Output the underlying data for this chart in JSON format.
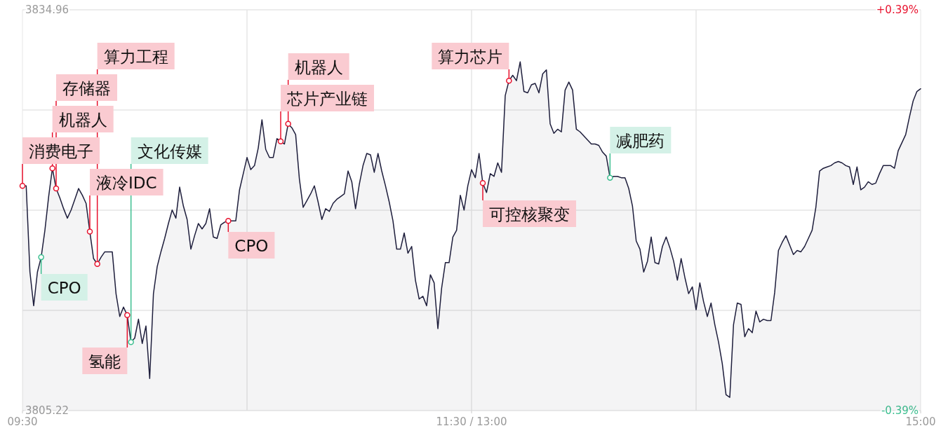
{
  "chart_data": {
    "type": "area",
    "ylim": [
      3805.22,
      3834.96
    ],
    "y2lim": [
      -0.39,
      0.39
    ],
    "yticks": [
      3834.96,
      3805.22
    ],
    "y2ticks": [
      {
        "value": 0.39,
        "label": "+0.39%"
      },
      {
        "value": -0.39,
        "label": "-0.39%"
      }
    ],
    "grid": true,
    "categories": [
      "09:30",
      null,
      null,
      null,
      null,
      null,
      null,
      null,
      null,
      null,
      null,
      null,
      null,
      null,
      null,
      null,
      null,
      null,
      null,
      null,
      null,
      null,
      null,
      null,
      null,
      null,
      null,
      null,
      null,
      null,
      null,
      null,
      null,
      null,
      null,
      null,
      null,
      null,
      null,
      null,
      null,
      null,
      null,
      null,
      null,
      null,
      null,
      null,
      null,
      null,
      null,
      null,
      null,
      null,
      null,
      null,
      null,
      null,
      null,
      null,
      null,
      null,
      null,
      null,
      null,
      null,
      null,
      null,
      null,
      null,
      null,
      null,
      null,
      null,
      null,
      null,
      null,
      null,
      null,
      null,
      null,
      null,
      null,
      null,
      null,
      null,
      null,
      null,
      null,
      null,
      null,
      null,
      null,
      null,
      null,
      null,
      null,
      null,
      null,
      null,
      null,
      null,
      null,
      null,
      null,
      null,
      null,
      null,
      null,
      null,
      null,
      null,
      null,
      null,
      null,
      null,
      null,
      null,
      null,
      null,
      "11:30 / 13:00",
      null,
      null,
      null,
      null,
      null,
      null,
      null,
      null,
      null,
      null,
      null,
      null,
      null,
      null,
      null,
      null,
      null,
      null,
      null,
      null,
      null,
      null,
      null,
      null,
      null,
      null,
      null,
      null,
      null,
      null,
      null,
      null,
      null,
      null,
      null,
      null,
      null,
      null,
      null,
      null,
      null,
      null,
      null,
      null,
      null,
      null,
      null,
      null,
      null,
      null,
      null,
      null,
      null,
      null,
      null,
      null,
      null,
      null,
      null,
      null,
      null,
      null,
      null,
      null,
      null,
      null,
      null,
      null,
      null,
      null,
      null,
      null,
      null,
      null,
      null,
      null,
      null,
      null,
      null,
      null,
      null,
      null,
      null,
      null,
      null,
      null,
      null,
      null,
      null,
      null,
      null,
      null,
      null,
      null,
      null,
      null,
      null,
      null,
      null,
      null,
      null,
      null,
      null,
      null,
      null,
      null,
      null,
      null,
      null,
      null,
      null,
      null,
      null,
      null,
      null,
      null,
      null,
      null,
      null,
      "15:00"
    ],
    "series": [
      {
        "color": "#1e1e3c",
        "values": [
          3821.9,
          3821.9,
          3815.5,
          3813.0,
          3815.5,
          3816.6,
          3818.6,
          3821.1,
          3823.2,
          3821.7,
          3821.0,
          3820.2,
          3819.5,
          3820.1,
          3820.9,
          3821.7,
          3821.2,
          3820.6,
          3818.5,
          3816.5,
          3816.1,
          3816.6,
          3817.0,
          3817.0,
          3817.0,
          3813.9,
          3812.2,
          3812.9,
          3812.3,
          3810.3,
          3810.6,
          3812.0,
          3810.2,
          3811.5,
          3807.6,
          3813.9,
          3815.9,
          3817.0,
          3818.0,
          3819.1,
          3820.1,
          3819.5,
          3821.8,
          3820.4,
          3819.4,
          3817.2,
          3818.2,
          3819.1,
          3818.7,
          3819.1,
          3820.2,
          3818.1,
          3818.0,
          3819.0,
          3819.2,
          3819.3,
          3819.3,
          3819.3,
          3821.6,
          3822.8,
          3824.0,
          3823.1,
          3823.4,
          3824.7,
          3826.8,
          3824.6,
          3824.0,
          3824.0,
          3825.4,
          3825.2,
          3825.0,
          3826.5,
          3826.2,
          3825.7,
          3822.4,
          3820.3,
          3820.8,
          3821.3,
          3821.9,
          3820.7,
          3819.4,
          3820.2,
          3820.0,
          3820.6,
          3820.9,
          3821.1,
          3821.3,
          3823.0,
          3822.2,
          3820.2,
          3822.0,
          3823.4,
          3824.3,
          3824.2,
          3822.9,
          3824.3,
          3823.0,
          3821.9,
          3820.7,
          3819.3,
          3817.2,
          3817.2,
          3818.4,
          3816.9,
          3817.4,
          3814.9,
          3813.5,
          3813.7,
          3813.0,
          3815.3,
          3814.7,
          3811.3,
          3814.3,
          3816.2,
          3816.2,
          3818.1,
          3818.6,
          3821.2,
          3820.1,
          3821.9,
          3823.1,
          3822.5,
          3824.3,
          3822.1,
          3821.4,
          3822.8,
          3822.6,
          3823.6,
          3822.9,
          3828.6,
          3829.7,
          3830.1,
          3829.7,
          3831.1,
          3828.9,
          3828.8,
          3829.4,
          3829.5,
          3828.8,
          3830.2,
          3830.5,
          3826.5,
          3825.8,
          3826.1,
          3825.9,
          3829.0,
          3829.6,
          3829.0,
          3826.1,
          3825.9,
          3825.6,
          3825.3,
          3825.0,
          3825.0,
          3824.9,
          3824.4,
          3824.1,
          3822.5,
          3822.6,
          3822.6,
          3822.5,
          3822.5,
          3821.7,
          3820.4,
          3817.8,
          3817.2,
          3815.5,
          3816.3,
          3818.1,
          3816.2,
          3816.1,
          3817.4,
          3818.1,
          3817.3,
          3816.3,
          3814.9,
          3816.5,
          3815.1,
          3813.9,
          3814.4,
          3812.7,
          3814.7,
          3813.3,
          3812.2,
          3813.2,
          3811.6,
          3810.3,
          3808.7,
          3806.4,
          3806.2,
          3811.6,
          3813.2,
          3813.1,
          3810.7,
          3811.3,
          3811.0,
          3812.6,
          3811.8,
          3812.0,
          3811.9,
          3811.9,
          3814.0,
          3817.1,
          3817.7,
          3818.2,
          3817.5,
          3816.8,
          3817.1,
          3817.0,
          3817.4,
          3818.0,
          3818.6,
          3820.3,
          3823.0,
          3823.2,
          3823.3,
          3823.4,
          3823.6,
          3823.7,
          3823.6,
          3823.4,
          3823.3,
          3822.0,
          3823.3,
          3821.6,
          3821.8,
          3822.2,
          3822.0,
          3822.1,
          3822.8,
          3823.4,
          3823.4,
          3823.4,
          3823.2,
          3824.5,
          3825.1,
          3825.7,
          3827.0,
          3828.2,
          3828.9,
          3829.1
        ]
      },
      {
        "type": "scatter",
        "marker": "circle",
        "color": "#e8112d",
        "values": [
          3821.9,
          null,
          null,
          null,
          null,
          null,
          null,
          null,
          3823.2,
          3821.7,
          null,
          null,
          null,
          null,
          null,
          null,
          null,
          null,
          3818.5,
          null,
          3816.1,
          null,
          null,
          null,
          null,
          null,
          null,
          null,
          3812.3,
          null,
          null,
          null,
          null,
          null,
          null,
          null,
          null,
          null,
          null,
          null,
          null,
          null,
          null,
          null,
          null,
          null,
          null,
          null,
          null,
          null,
          null,
          null,
          null,
          null,
          null,
          3819.3,
          null,
          null,
          null,
          null,
          null,
          null,
          null,
          null,
          null,
          null,
          null,
          null,
          null,
          3825.2,
          null,
          3826.5,
          null,
          null,
          null,
          null,
          null,
          null,
          null,
          null,
          null,
          null,
          null,
          null,
          null,
          null,
          null,
          null,
          null,
          null,
          null,
          null,
          null,
          null,
          null,
          null,
          null,
          null,
          null,
          null,
          null,
          null,
          null,
          null,
          null,
          null,
          null,
          null,
          null,
          null,
          null,
          null,
          null,
          null,
          null,
          null,
          null,
          null,
          null,
          null,
          null,
          null,
          null,
          3822.1,
          null,
          null,
          null,
          null,
          null,
          null,
          3829.7,
          null,
          null,
          null,
          null,
          null,
          null,
          null,
          null,
          null,
          null,
          null,
          null,
          null,
          null,
          null,
          null,
          null,
          null,
          null,
          null,
          null,
          null,
          null,
          null,
          null,
          null,
          null,
          null,
          null,
          null,
          null,
          null,
          null,
          null,
          null,
          null,
          null,
          null,
          null,
          null,
          null,
          null,
          null,
          null,
          null,
          null,
          null,
          null,
          null,
          null,
          null,
          null,
          null,
          null,
          null,
          null,
          null,
          null,
          null,
          null,
          null,
          null,
          null,
          null,
          null,
          null,
          null,
          null,
          null,
          null,
          null,
          null,
          null,
          null,
          null,
          null,
          null,
          null,
          null,
          null,
          null,
          null,
          null,
          null,
          null,
          null,
          null,
          null,
          null,
          null,
          null,
          null,
          null,
          null,
          null,
          null,
          null,
          null,
          null,
          null,
          null,
          null,
          null,
          null,
          null,
          null,
          null,
          null,
          null,
          null
        ],
        "value_labels": [
          "消费电子",
          null,
          null,
          null,
          null,
          null,
          null,
          null,
          "机器人",
          "存储器",
          null,
          null,
          null,
          null,
          null,
          null,
          null,
          null,
          "液冷IDC",
          null,
          "算力工程",
          null,
          null,
          null,
          null,
          null,
          null,
          null,
          "氢能",
          null,
          null,
          null,
          null,
          null,
          null,
          null,
          null,
          null,
          null,
          null,
          null,
          null,
          null,
          null,
          null,
          null,
          null,
          null,
          null,
          null,
          null,
          null,
          null,
          null,
          null,
          "CPO",
          null,
          null,
          null,
          null,
          null,
          null,
          null,
          null,
          null,
          null,
          null,
          null,
          null,
          "芯片产业链",
          null,
          "机器人",
          null,
          null,
          null,
          null,
          null,
          null,
          null,
          null,
          null,
          null,
          null,
          null,
          null,
          null,
          null,
          null,
          null,
          null,
          null,
          null,
          null,
          null,
          null,
          null,
          null,
          null,
          null,
          null,
          null,
          null,
          null,
          null,
          null,
          null,
          null,
          null,
          null,
          null,
          null,
          null,
          null,
          null,
          null,
          null,
          null,
          null,
          null,
          null,
          null,
          null,
          null,
          "可控核聚变",
          null,
          null,
          null,
          null,
          null,
          null,
          "算力芯片",
          null,
          null,
          null,
          null,
          null,
          null,
          null,
          null,
          null,
          null,
          null,
          null,
          null,
          null,
          null,
          null,
          null,
          null,
          null,
          null,
          null,
          null,
          null,
          null,
          null,
          null,
          null,
          null,
          null,
          null,
          null,
          null,
          null,
          null,
          null,
          null,
          null,
          null,
          null,
          null,
          null,
          null,
          null,
          null,
          null,
          null,
          null,
          null,
          null,
          null,
          null,
          null,
          null,
          null,
          null,
          null,
          null,
          null,
          null,
          null,
          null,
          null,
          null,
          null,
          null,
          null,
          null,
          null,
          null,
          null,
          null,
          null,
          null,
          null,
          null,
          null,
          null,
          null,
          null,
          null,
          null,
          null,
          null,
          null,
          null,
          null,
          null,
          null,
          null,
          null,
          null,
          null,
          null,
          null,
          null,
          null,
          null,
          null,
          null,
          null,
          null,
          null,
          null,
          null,
          null,
          null,
          null,
          null,
          null,
          null
        ]
      },
      {
        "type": "scatter",
        "marker": "circle",
        "color": "#3dbf90",
        "values": [
          null,
          null,
          null,
          null,
          null,
          3816.6,
          null,
          null,
          null,
          null,
          null,
          null,
          null,
          null,
          null,
          null,
          null,
          null,
          null,
          null,
          null,
          null,
          null,
          null,
          null,
          null,
          null,
          null,
          null,
          3810.3,
          null,
          null,
          null,
          null,
          null,
          null,
          null,
          null,
          null,
          null,
          null,
          null,
          null,
          null,
          null,
          null,
          null,
          null,
          null,
          null,
          null,
          null,
          null,
          null,
          null,
          null,
          null,
          null,
          null,
          null,
          null,
          null,
          null,
          null,
          null,
          null,
          null,
          null,
          null,
          null,
          null,
          null,
          null,
          null,
          null,
          null,
          null,
          null,
          null,
          null,
          null,
          null,
          null,
          null,
          null,
          null,
          null,
          null,
          null,
          null,
          null,
          null,
          null,
          null,
          null,
          null,
          null,
          null,
          null,
          null,
          null,
          null,
          null,
          null,
          null,
          null,
          null,
          null,
          null,
          null,
          null,
          null,
          null,
          null,
          null,
          null,
          null,
          null,
          null,
          null,
          null,
          null,
          null,
          null,
          null,
          null,
          null,
          null,
          null,
          null,
          null,
          null,
          null,
          null,
          null,
          null,
          null,
          null,
          null,
          null,
          null,
          null,
          null,
          null,
          null,
          null,
          null,
          null,
          null,
          null,
          null,
          null,
          null,
          null,
          null,
          null,
          null,
          3822.5,
          null,
          null,
          null,
          null,
          null,
          null,
          null,
          null,
          null,
          null,
          null,
          null,
          null,
          null,
          null,
          null,
          null,
          null,
          null,
          null,
          null,
          null,
          null,
          null,
          null,
          null,
          null,
          null,
          null,
          null,
          null,
          null,
          null,
          null,
          null,
          null,
          null,
          null,
          null,
          null,
          null,
          null,
          null,
          null,
          null,
          null,
          null,
          null,
          null,
          null,
          null,
          null,
          null,
          null,
          null,
          null,
          null,
          null,
          null,
          null,
          null,
          null,
          null,
          null,
          null,
          null,
          null,
          null,
          null,
          null,
          null,
          null,
          null,
          null,
          null,
          null,
          null,
          null,
          null,
          null,
          null,
          null,
          null
        ],
        "value_labels": [
          null,
          null,
          null,
          null,
          null,
          "CPO",
          null,
          null,
          null,
          null,
          null,
          null,
          null,
          null,
          null,
          null,
          null,
          null,
          null,
          null,
          null,
          null,
          null,
          null,
          null,
          null,
          null,
          null,
          null,
          "文化传媒",
          null,
          null,
          null,
          null,
          null,
          null,
          null,
          null,
          null,
          null,
          null,
          null,
          null,
          null,
          null,
          null,
          null,
          null,
          null,
          null,
          null,
          null,
          null,
          null,
          null,
          null,
          null,
          null,
          null,
          null,
          null,
          null,
          null,
          null,
          null,
          null,
          null,
          null,
          null,
          null,
          null,
          null,
          null,
          null,
          null,
          null,
          null,
          null,
          null,
          null,
          null,
          null,
          null,
          null,
          null,
          null,
          null,
          null,
          null,
          null,
          null,
          null,
          null,
          null,
          null,
          null,
          null,
          null,
          null,
          null,
          null,
          null,
          null,
          null,
          null,
          null,
          null,
          null,
          null,
          null,
          null,
          null,
          null,
          null,
          null,
          null,
          null,
          null,
          null,
          null,
          null,
          null,
          null,
          null,
          null,
          null,
          null,
          null,
          null,
          null,
          null,
          null,
          null,
          null,
          null,
          null,
          null,
          null,
          null,
          null,
          null,
          null,
          null,
          null,
          null,
          null,
          null,
          null,
          null,
          null,
          null,
          null,
          null,
          null,
          null,
          null,
          null,
          "减肥药",
          null,
          null,
          null,
          null,
          null,
          null,
          null,
          null,
          null,
          null,
          null,
          null,
          null,
          null,
          null,
          null,
          null,
          null,
          null,
          null,
          null,
          null,
          null,
          null,
          null,
          null,
          null,
          null,
          null,
          null,
          null,
          null,
          null,
          null,
          null,
          null,
          null,
          null,
          null,
          null,
          null,
          null,
          null,
          null,
          null,
          null,
          null,
          null,
          null,
          null,
          null,
          null,
          null,
          null,
          null,
          null,
          null,
          null,
          null,
          null,
          null,
          null,
          null,
          null,
          null,
          null,
          null,
          null,
          null,
          null,
          null,
          null,
          null,
          null,
          null,
          null,
          null,
          null,
          null,
          null,
          null,
          null,
          null
        ]
      }
    ]
  }
}
